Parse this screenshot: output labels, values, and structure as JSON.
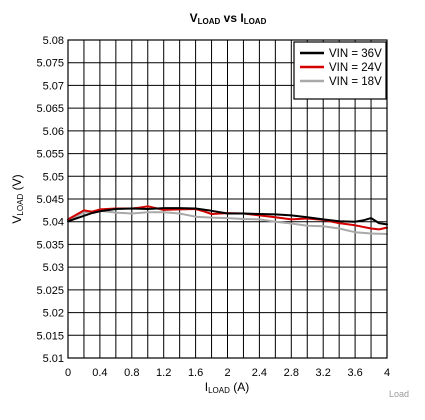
{
  "chart_data": {
    "type": "line",
    "title_main": "V",
    "title_sub": "LOAD",
    "title_mid": " vs I",
    "title_sub2": "LOAD",
    "xlabel_main": "I",
    "xlabel_sub": "LOAD",
    "xlabel_unit": " (A)",
    "ylabel_main": "V",
    "ylabel_sub": "LOAD",
    "ylabel_unit": " (V)",
    "xlim": [
      0,
      4
    ],
    "ylim": [
      5.01,
      5.08
    ],
    "x_ticks": [
      0,
      0.4,
      0.8,
      1.2,
      1.6,
      2,
      2.4,
      2.8,
      3.2,
      3.6,
      4
    ],
    "x_tick_labels": [
      "0",
      "0.4",
      "0.8",
      "1.2",
      "1.6",
      "2",
      "2.4",
      "2.8",
      "3.2",
      "3.6",
      "4"
    ],
    "x_minor_step": 0.2,
    "y_ticks": [
      5.01,
      5.015,
      5.02,
      5.025,
      5.03,
      5.035,
      5.04,
      5.045,
      5.05,
      5.055,
      5.06,
      5.065,
      5.07,
      5.075,
      5.08
    ],
    "y_tick_labels": [
      "5.01",
      "5.015",
      "5.02",
      "5.025",
      "5.03",
      "5.035",
      "5.04",
      "5.045",
      "5.05",
      "5.055",
      "5.06",
      "5.065",
      "5.07",
      "5.075",
      "5.08"
    ],
    "grid": true,
    "legend_position": "top-right",
    "series": [
      {
        "name": "VIN = 36V",
        "color": "#000000",
        "x": [
          0,
          0.1,
          0.2,
          0.3,
          0.4,
          0.6,
          0.8,
          1.0,
          1.2,
          1.4,
          1.6,
          1.8,
          2.0,
          2.2,
          2.4,
          2.6,
          2.8,
          3.0,
          3.2,
          3.4,
          3.6,
          3.7,
          3.8,
          3.9,
          4.0
        ],
        "y": [
          5.0401,
          5.0407,
          5.0413,
          5.0419,
          5.0423,
          5.0428,
          5.0429,
          5.0428,
          5.043,
          5.043,
          5.0429,
          5.0424,
          5.0418,
          5.0418,
          5.0417,
          5.0416,
          5.0414,
          5.041,
          5.0405,
          5.0401,
          5.04,
          5.0403,
          5.0408,
          5.0397,
          5.0394
        ]
      },
      {
        "name": "VIN = 24V",
        "color": "#d40000",
        "x": [
          0,
          0.1,
          0.2,
          0.3,
          0.4,
          0.6,
          0.8,
          0.9,
          1.0,
          1.1,
          1.2,
          1.4,
          1.6,
          1.7,
          1.8,
          2.0,
          2.2,
          2.4,
          2.6,
          2.8,
          3.0,
          3.2,
          3.4,
          3.6,
          3.8,
          3.9,
          4.0
        ],
        "y": [
          5.0405,
          5.0415,
          5.0425,
          5.0422,
          5.0427,
          5.0429,
          5.0429,
          5.0431,
          5.0434,
          5.043,
          5.0426,
          5.0427,
          5.0428,
          5.0423,
          5.0417,
          5.0419,
          5.0418,
          5.0414,
          5.041,
          5.0405,
          5.0407,
          5.0404,
          5.0397,
          5.0392,
          5.0385,
          5.0383,
          5.0387
        ]
      },
      {
        "name": "VIN = 18V",
        "color": "#a9a9a9",
        "x": [
          0,
          0.2,
          0.4,
          0.6,
          0.8,
          1.0,
          1.2,
          1.4,
          1.6,
          1.8,
          2.0,
          2.2,
          2.4,
          2.6,
          2.8,
          3.0,
          3.2,
          3.4,
          3.6,
          3.8,
          4.0
        ],
        "y": [
          5.0404,
          5.042,
          5.0424,
          5.042,
          5.0418,
          5.0421,
          5.0421,
          5.0418,
          5.0411,
          5.0409,
          5.0408,
          5.0406,
          5.0405,
          5.04,
          5.0396,
          5.0391,
          5.039,
          5.0385,
          5.0377,
          5.0374,
          5.0373
        ]
      }
    ]
  },
  "watermark": "Load"
}
